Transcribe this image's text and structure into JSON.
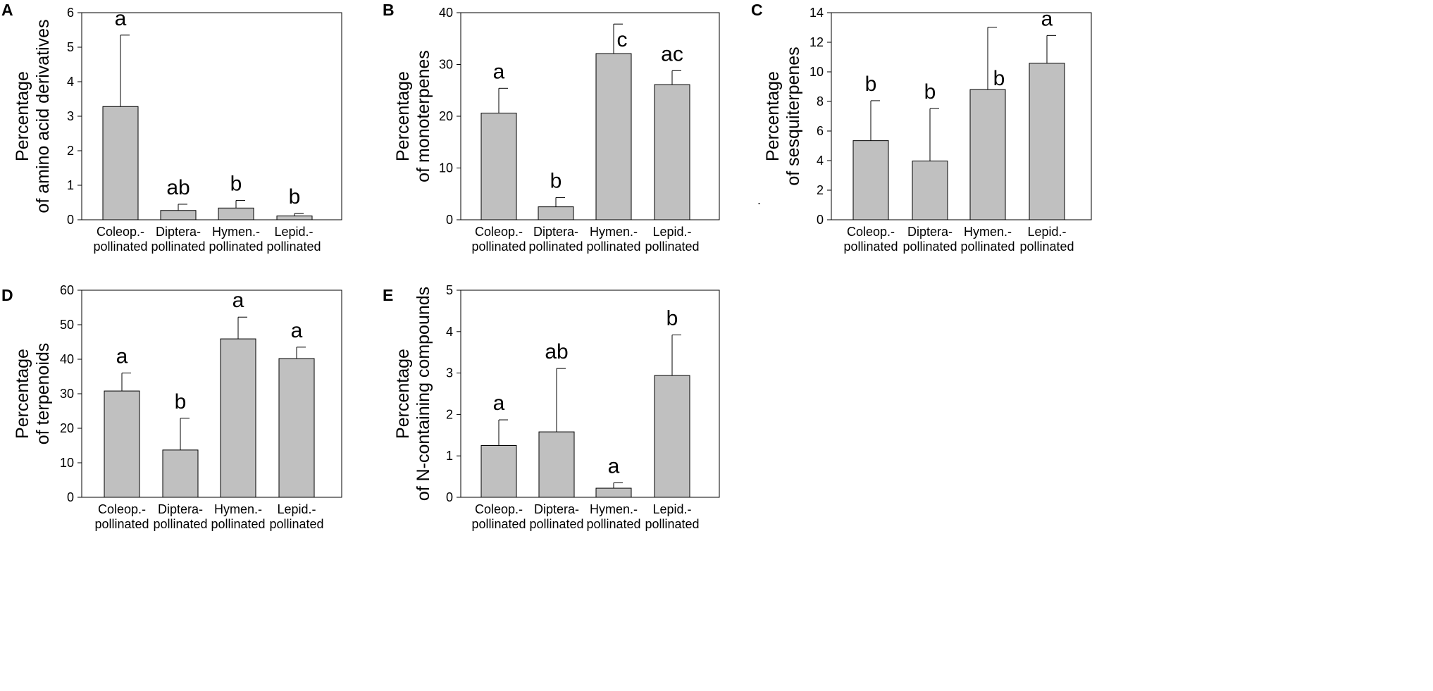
{
  "chart_data": [
    {
      "panel_label": "A",
      "type": "bar",
      "categories": [
        [
          "Coleop.-",
          "pollinated"
        ],
        [
          "Diptera-",
          "pollinated"
        ],
        [
          "Hymen.-",
          "pollinated"
        ],
        [
          "Lepid.-",
          "pollinated"
        ]
      ],
      "values": [
        3.28,
        0.27,
        0.34,
        0.11
      ],
      "errors": [
        2.07,
        0.18,
        0.22,
        0.07
      ],
      "letters": [
        "a",
        "ab",
        "b",
        "b"
      ],
      "ylabel": [
        "Percentage",
        "of amino acid derivatives"
      ],
      "ylim": [
        0,
        6
      ],
      "yticks": [
        0,
        1,
        2,
        3,
        4,
        5,
        6
      ],
      "bar_color": "#c0c0c0"
    },
    {
      "panel_label": "B",
      "type": "bar",
      "categories": [
        [
          "Coleop.-",
          "pollinated"
        ],
        [
          "Diptera-",
          "pollinated"
        ],
        [
          "Hymen.-",
          "pollinated"
        ],
        [
          "Lepid.-",
          "pollinated"
        ]
      ],
      "values": [
        20.6,
        2.5,
        32.1,
        26.1
      ],
      "errors": [
        4.8,
        1.8,
        5.7,
        2.7
      ],
      "letters": [
        "a",
        "b",
        "c",
        "ac"
      ],
      "ylabel": [
        "Percentage",
        "of monoterpenes"
      ],
      "ylim": [
        0,
        40
      ],
      "yticks": [
        0,
        10,
        20,
        30,
        40
      ],
      "bar_color": "#c0c0c0"
    },
    {
      "panel_label": "C",
      "type": "bar",
      "categories": [
        [
          "Coleop.-",
          "pollinated"
        ],
        [
          "Diptera-",
          "pollinated"
        ],
        [
          "Hymen.-",
          "pollinated"
        ],
        [
          "Lepid.-",
          "pollinated"
        ]
      ],
      "values": [
        5.35,
        3.97,
        8.8,
        10.58
      ],
      "errors": [
        2.7,
        3.55,
        4.22,
        1.88
      ],
      "letters": [
        "b",
        "b",
        "b",
        "a"
      ],
      "ylabel": [
        "Percentage",
        "of sesquiterpenes"
      ],
      "stray_text": ".",
      "ylim": [
        0,
        14
      ],
      "yticks": [
        0,
        2,
        4,
        6,
        8,
        10,
        12,
        14
      ],
      "bar_color": "#c0c0c0"
    },
    {
      "panel_label": "D",
      "type": "bar",
      "categories": [
        [
          "Coleop.-",
          "pollinated"
        ],
        [
          "Diptera-",
          "pollinated"
        ],
        [
          "Hymen.-",
          "pollinated"
        ],
        [
          "Lepid.-",
          "pollinated"
        ]
      ],
      "values": [
        30.8,
        13.7,
        45.9,
        40.2
      ],
      "errors": [
        5.2,
        9.2,
        6.3,
        3.3
      ],
      "letters": [
        "a",
        "b",
        "a",
        "a"
      ],
      "ylabel": [
        "Percentage",
        "of terpenoids"
      ],
      "ylim": [
        0,
        60
      ],
      "yticks": [
        0,
        10,
        20,
        30,
        40,
        50,
        60
      ],
      "bar_color": "#c0c0c0"
    },
    {
      "panel_label": "E",
      "type": "bar",
      "categories": [
        [
          "Coleop.-",
          "pollinated"
        ],
        [
          "Diptera-",
          "pollinated"
        ],
        [
          "Hymen.-",
          "pollinated"
        ],
        [
          "Lepid.-",
          "pollinated"
        ]
      ],
      "values": [
        1.25,
        1.58,
        0.22,
        2.94
      ],
      "errors": [
        0.62,
        1.53,
        0.13,
        0.98
      ],
      "letters": [
        "a",
        "ab",
        "a",
        "b"
      ],
      "ylabel": [
        "Percentage",
        "of N-containing compounds"
      ],
      "ylim": [
        0,
        5
      ],
      "yticks": [
        0,
        1,
        2,
        3,
        4,
        5
      ],
      "bar_color": "#c0c0c0"
    }
  ]
}
